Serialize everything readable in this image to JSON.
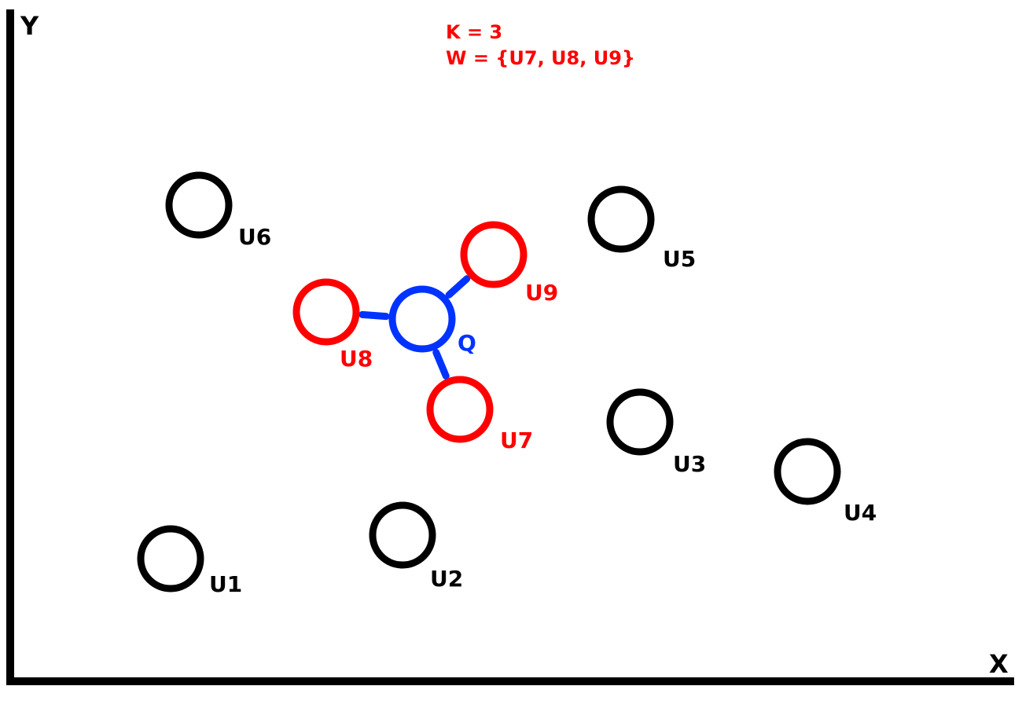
{
  "axes": {
    "x_label": "X",
    "y_label": "Y"
  },
  "legend": {
    "line1": "K = 3",
    "line2": "W = {U7, U8, U9}"
  },
  "colors": {
    "axis": "#000000",
    "normal": "#000000",
    "neighbor": "#ff0000",
    "query": "#0033ff"
  },
  "points": [
    {
      "id": "U1",
      "role": "normal"
    },
    {
      "id": "U2",
      "role": "normal"
    },
    {
      "id": "U3",
      "role": "normal"
    },
    {
      "id": "U4",
      "role": "normal"
    },
    {
      "id": "U5",
      "role": "normal"
    },
    {
      "id": "U6",
      "role": "normal"
    },
    {
      "id": "U7",
      "role": "neighbor"
    },
    {
      "id": "U8",
      "role": "neighbor"
    },
    {
      "id": "U9",
      "role": "neighbor"
    },
    {
      "id": "Q",
      "role": "query"
    }
  ],
  "edges": [
    {
      "from": "Q",
      "to": "U7"
    },
    {
      "from": "Q",
      "to": "U8"
    },
    {
      "from": "Q",
      "to": "U9"
    }
  ]
}
